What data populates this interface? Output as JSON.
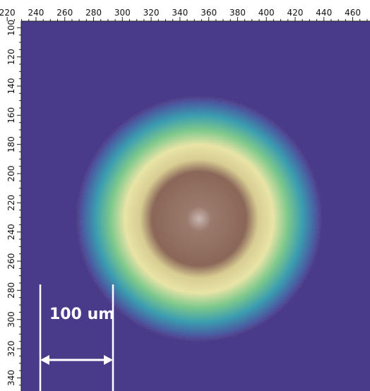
{
  "x_axis": {
    "lim": [
      215,
      472
    ],
    "ticks": [
      220,
      240,
      260,
      280,
      300,
      320,
      340,
      360,
      380,
      400,
      420,
      440,
      460
    ]
  },
  "y_axis": {
    "lim": [
      81,
      349
    ],
    "ticks": [
      100,
      120,
      140,
      160,
      180,
      200,
      220,
      240,
      260,
      280,
      300,
      320,
      340
    ]
  },
  "scale_bar": {
    "label": "100 um"
  }
}
